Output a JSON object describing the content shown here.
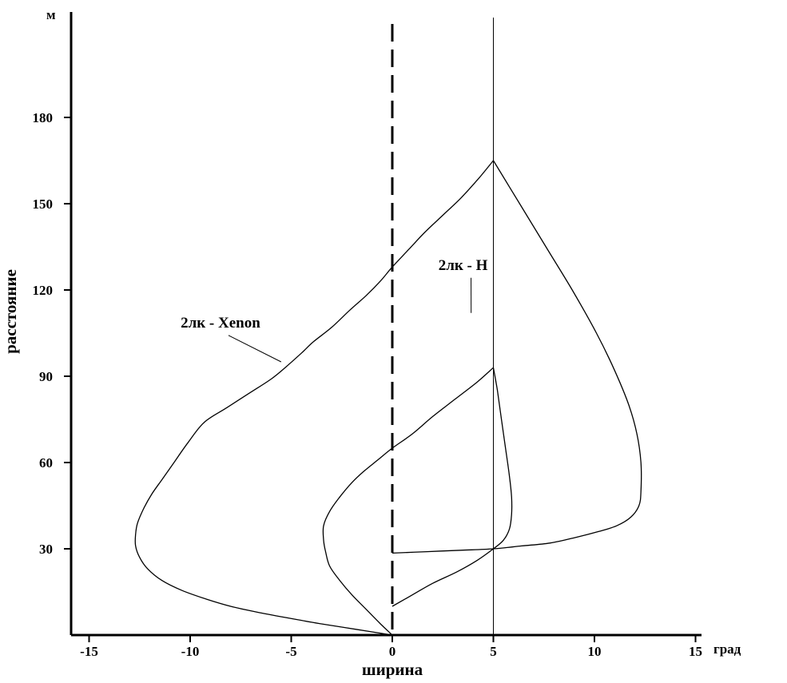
{
  "chart_data": {
    "type": "line",
    "title": "",
    "xlabel": "ширина",
    "ylabel": "расстояние",
    "x_unit": "град",
    "y_unit": "м",
    "xlim": [
      -17,
      17
    ],
    "ylim": [
      0,
      210
    ],
    "x_ticks": [
      -15,
      -10,
      -5,
      0,
      5,
      10,
      15
    ],
    "y_ticks": [
      30,
      60,
      90,
      120,
      150,
      180
    ],
    "grid": false,
    "reference_lines": [
      {
        "x": 0,
        "style": "dashed"
      },
      {
        "x": 5,
        "style": "solid"
      }
    ],
    "series": [
      {
        "name": "2лк - Xenon",
        "points": [
          [
            0,
            0
          ],
          [
            -1.8,
            2
          ],
          [
            -3.6,
            4
          ],
          [
            -5.2,
            6
          ],
          [
            -6.7,
            8
          ],
          [
            -8,
            10
          ],
          [
            -9.2,
            12.5
          ],
          [
            -10.4,
            15.5
          ],
          [
            -11.4,
            19
          ],
          [
            -12.1,
            23
          ],
          [
            -12.5,
            27
          ],
          [
            -12.7,
            31
          ],
          [
            -12.7,
            35
          ],
          [
            -12.6,
            39
          ],
          [
            -12.3,
            44
          ],
          [
            -11.9,
            49
          ],
          [
            -11.4,
            54
          ],
          [
            -10.8,
            60
          ],
          [
            -10.1,
            67
          ],
          [
            -9.3,
            74
          ],
          [
            -8.2,
            79
          ],
          [
            -7.1,
            84
          ],
          [
            -6,
            89
          ],
          [
            -5.3,
            93
          ],
          [
            -4.5,
            98
          ],
          [
            -3.9,
            102
          ],
          [
            -3,
            107
          ],
          [
            -2.1,
            113
          ],
          [
            -1.3,
            118
          ],
          [
            -0.6,
            123
          ],
          [
            0,
            128
          ],
          [
            0.8,
            134
          ],
          [
            1.6,
            140
          ],
          [
            2.5,
            146
          ],
          [
            3.4,
            152
          ],
          [
            4.3,
            159
          ],
          [
            5,
            165
          ]
        ]
      },
      {
        "name": "2лк - H",
        "points": [
          [
            0,
            0
          ],
          [
            -0.6,
            4
          ],
          [
            -1.3,
            9
          ],
          [
            -2,
            14
          ],
          [
            -2.6,
            19
          ],
          [
            -3.1,
            24
          ],
          [
            -3.3,
            29
          ],
          [
            -3.4,
            33
          ],
          [
            -3.4,
            38
          ],
          [
            -3.1,
            43
          ],
          [
            -2.6,
            48
          ],
          [
            -2,
            53
          ],
          [
            -1.4,
            57
          ],
          [
            -0.7,
            61
          ],
          [
            0,
            65
          ],
          [
            1,
            70
          ],
          [
            2,
            76
          ],
          [
            3.1,
            82
          ],
          [
            4.2,
            88
          ],
          [
            5,
            93
          ]
        ]
      },
      {
        "name": "",
        "points": [
          [
            5,
            165
          ],
          [
            6.3,
            150
          ],
          [
            7.6,
            135
          ],
          [
            8.9,
            120
          ],
          [
            10.1,
            105
          ],
          [
            11,
            92
          ],
          [
            11.7,
            80
          ],
          [
            12.1,
            70
          ],
          [
            12.3,
            60
          ],
          [
            12.3,
            50
          ],
          [
            12.2,
            45
          ],
          [
            11.8,
            41
          ],
          [
            11.1,
            38
          ],
          [
            10.2,
            36
          ],
          [
            9.1,
            34
          ],
          [
            7.8,
            32
          ],
          [
            6.4,
            31
          ],
          [
            5,
            30
          ],
          [
            3.4,
            29.5
          ],
          [
            1.7,
            29
          ],
          [
            0,
            28.5
          ]
        ]
      },
      {
        "name": "",
        "points": [
          [
            5,
            93
          ],
          [
            5.2,
            85
          ],
          [
            5.4,
            75
          ],
          [
            5.6,
            65
          ],
          [
            5.8,
            55
          ],
          [
            5.9,
            48
          ],
          [
            5.9,
            42
          ],
          [
            5.8,
            37
          ],
          [
            5.5,
            33
          ],
          [
            5,
            30
          ],
          [
            4.2,
            26
          ],
          [
            3.2,
            22
          ],
          [
            2,
            18
          ],
          [
            1,
            14
          ],
          [
            0,
            10
          ]
        ]
      }
    ],
    "annotations": [
      {
        "text": "2лк - Xenon",
        "x": -8.5,
        "y": 107,
        "arrow_to": [
          -5.5,
          95
        ]
      },
      {
        "text": "2лк - H",
        "x": 3.5,
        "y": 127,
        "arrow_to": [
          3.9,
          112
        ]
      }
    ]
  }
}
